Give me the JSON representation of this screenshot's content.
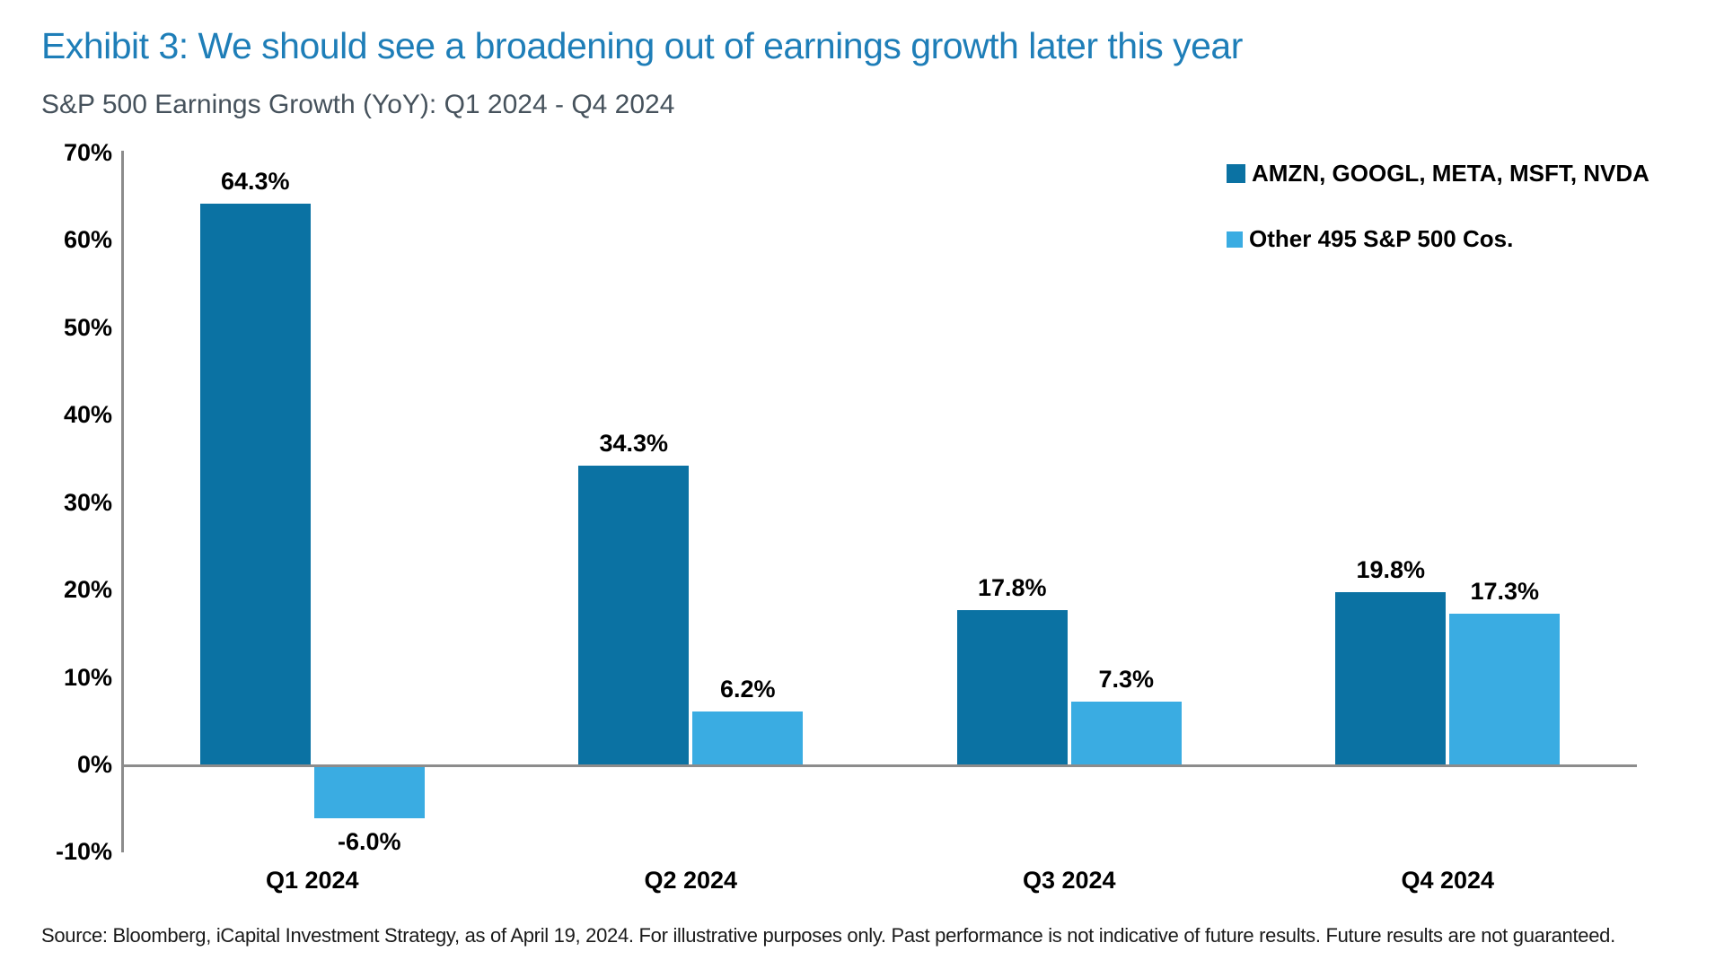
{
  "page": {
    "background_color": "#ffffff"
  },
  "header": {
    "title": "Exhibit 3: We should see a broadening out of earnings growth later this year",
    "title_color": "#1E7EB8",
    "subtitle": "S&P 500 Earnings Growth (YoY): Q1 2024 - Q4 2024",
    "subtitle_color": "#46525C"
  },
  "chart_data": {
    "type": "bar",
    "title": "S&P 500 Earnings Growth (YoY): Q1 2024 - Q4 2024",
    "categories": [
      "Q1 2024",
      "Q2 2024",
      "Q3 2024",
      "Q4 2024"
    ],
    "series": [
      {
        "name": "AMZN, GOOGL, META, MSFT, NVDA",
        "color": "#0B72A3",
        "values": [
          64.3,
          34.3,
          17.8,
          19.8
        ],
        "labels": [
          "64.3%",
          "34.3%",
          "17.8%",
          "19.8%"
        ]
      },
      {
        "name": "Other 495 S&P 500 Cos.",
        "color": "#3AACE2",
        "values": [
          -6.0,
          6.2,
          7.3,
          17.3
        ],
        "labels": [
          "-6.0%",
          "6.2%",
          "7.3%",
          "17.3%"
        ]
      }
    ],
    "y_axis": {
      "min": -10,
      "max": 70,
      "step": 10,
      "tick_labels": [
        "70%",
        "60%",
        "50%",
        "40%",
        "30%",
        "20%",
        "10%",
        "0%",
        "-10%"
      ]
    },
    "axis_color": "#8C8C8C",
    "grid": false,
    "legend_position": "top-right"
  },
  "footer": {
    "source": "Source: Bloomberg, iCapital Investment Strategy, as of April 19, 2024. For illustrative purposes only. Past performance is not indicative of future results. Future results are not guaranteed."
  }
}
